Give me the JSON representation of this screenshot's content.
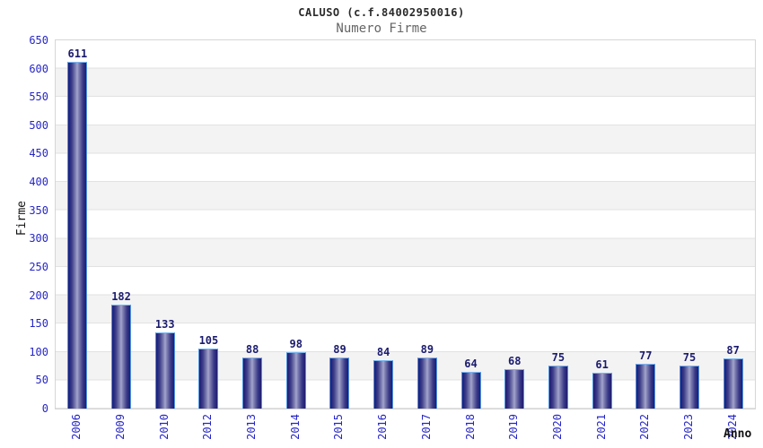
{
  "header": {
    "title": "CALUSO (c.f.84002950016)",
    "subtitle": "Numero Firme"
  },
  "chart_data": {
    "type": "bar",
    "title": "CALUSO (c.f.84002950016)",
    "subtitle": "Numero Firme",
    "categories": [
      "2006",
      "2009",
      "2010",
      "2012",
      "2013",
      "2014",
      "2015",
      "2016",
      "2017",
      "2018",
      "2019",
      "2020",
      "2021",
      "2022",
      "2023",
      "2024"
    ],
    "values": [
      611,
      182,
      133,
      105,
      88,
      98,
      89,
      84,
      89,
      64,
      68,
      75,
      61,
      77,
      75,
      87
    ],
    "xlabel": "Anno",
    "ylabel": "Firme",
    "ylim": [
      0,
      650
    ],
    "ytick_step": 50,
    "grid": "horizontal-bands-alternating",
    "legend": "none",
    "colors": {
      "bar_dark": "#1b1b74",
      "bar_light": "#a6a6d0",
      "bar_edge": "#4f94e0",
      "tick_label": "#2626c9",
      "value_label": "#1b1b6e",
      "band_white": "#ffffff",
      "band_gray": "#f3f3f3",
      "gridline": "#e2e2e2",
      "title": "#2a2a2a",
      "subtitle": "#666666"
    }
  }
}
